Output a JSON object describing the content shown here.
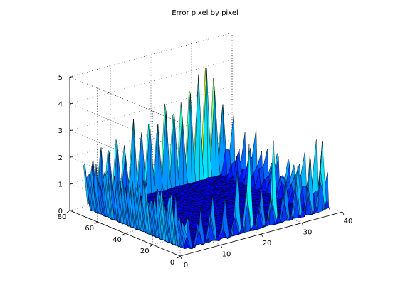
{
  "chart_data": {
    "type": "surface",
    "title": "Error pixel by pixel",
    "xlabel": "",
    "ylabel": "",
    "zlabel": "",
    "x_ticks": [
      0,
      10,
      20,
      30,
      40
    ],
    "y_ticks": [
      0,
      20,
      40,
      60,
      80
    ],
    "z_ticks": [
      0,
      1,
      2,
      3,
      4,
      5
    ],
    "xlim": [
      0,
      40
    ],
    "ylim": [
      0,
      80
    ],
    "zlim": [
      0,
      5
    ],
    "grid": true,
    "colormap": "jet",
    "grid_size": {
      "x_points": 37,
      "y_points": 73
    },
    "error_profile": {
      "interior_level": 0.1,
      "back_edge_row_y": 73,
      "back_edge_peaks": [
        {
          "x": 1,
          "z": 2.2
        },
        {
          "x": 3,
          "z": 2.0
        },
        {
          "x": 5,
          "z": 2.4
        },
        {
          "x": 7,
          "z": 2.6
        },
        {
          "x": 9,
          "z": 3.0
        },
        {
          "x": 11,
          "z": 2.2
        },
        {
          "x": 13,
          "z": 3.2
        },
        {
          "x": 15,
          "z": 2.5
        },
        {
          "x": 17,
          "z": 3.4
        },
        {
          "x": 19,
          "z": 2.8
        },
        {
          "x": 21,
          "z": 3.5
        },
        {
          "x": 23,
          "z": 3.1
        },
        {
          "x": 25,
          "z": 3.6
        },
        {
          "x": 27,
          "z": 3.9
        },
        {
          "x": 29,
          "z": 4.3
        },
        {
          "x": 31,
          "z": 5.1
        },
        {
          "x": 33,
          "z": 4.4
        },
        {
          "x": 35,
          "z": 3.2
        }
      ],
      "front_edge_row_x": 37,
      "front_edge_peaks": [
        {
          "y": 2,
          "z": 1.8
        },
        {
          "y": 6,
          "z": 2.6
        },
        {
          "y": 10,
          "z": 3.0
        },
        {
          "y": 14,
          "z": 2.2
        },
        {
          "y": 18,
          "z": 3.4
        },
        {
          "y": 22,
          "z": 2.9
        },
        {
          "y": 26,
          "z": 2.4
        },
        {
          "y": 30,
          "z": 3.1
        },
        {
          "y": 34,
          "z": 2.0
        },
        {
          "y": 38,
          "z": 2.7
        },
        {
          "y": 42,
          "z": 2.3
        },
        {
          "y": 46,
          "z": 3.3
        },
        {
          "y": 50,
          "z": 2.5
        },
        {
          "y": 54,
          "z": 3.0
        },
        {
          "y": 58,
          "z": 2.1
        },
        {
          "y": 62,
          "z": 2.6
        },
        {
          "y": 66,
          "z": 1.9
        },
        {
          "y": 70,
          "z": 2.4
        }
      ],
      "right_edge_row_y": 1,
      "right_edge_peaks": [
        {
          "x": 2,
          "z": 1.4
        },
        {
          "x": 5,
          "z": 2.1
        },
        {
          "x": 8,
          "z": 2.9
        },
        {
          "x": 11,
          "z": 1.8
        },
        {
          "x": 14,
          "z": 2.6
        },
        {
          "x": 17,
          "z": 3.6
        },
        {
          "x": 20,
          "z": 2.4
        },
        {
          "x": 23,
          "z": 3.9
        },
        {
          "x": 26,
          "z": 2.5
        },
        {
          "x": 29,
          "z": 3.3
        },
        {
          "x": 32,
          "z": 2.8
        },
        {
          "x": 35,
          "z": 4.2
        }
      ]
    }
  }
}
